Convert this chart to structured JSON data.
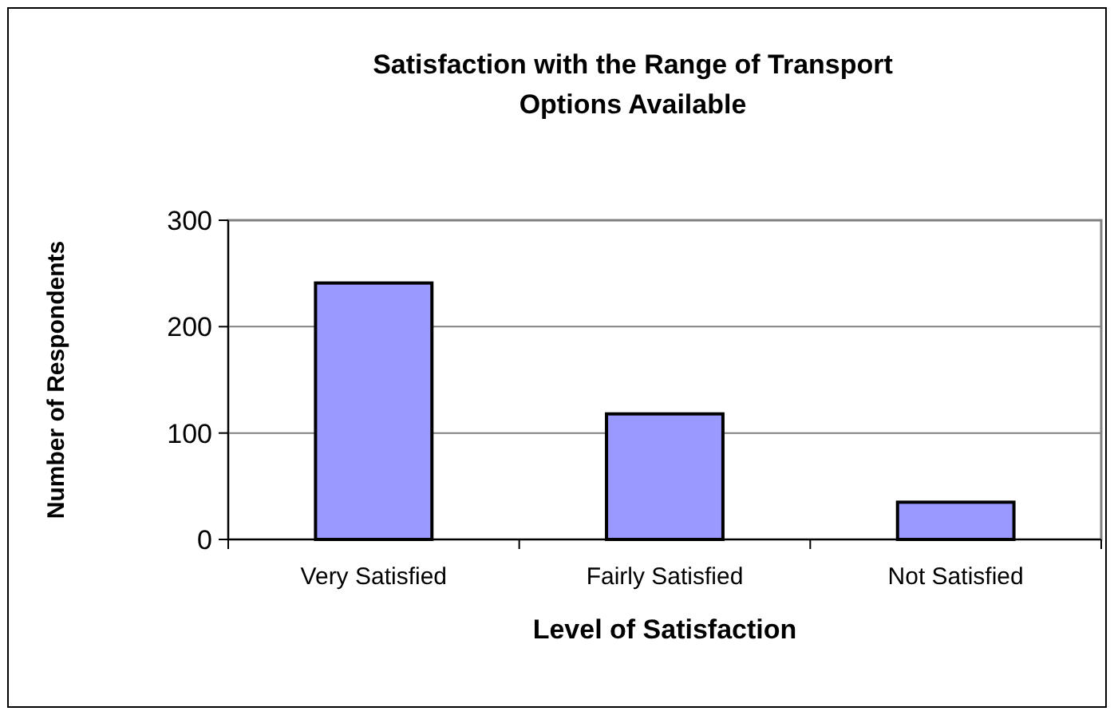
{
  "chart_data": {
    "type": "bar",
    "title": "Satisfaction with the Range of Transport Options Available",
    "xlabel": "Level of Satisfaction",
    "ylabel": "Number of Respondents",
    "categories": [
      "Very Satisfied",
      "Fairly Satisfied",
      "Not Satisfied"
    ],
    "values": [
      241,
      118,
      35
    ],
    "color": "#9999ff",
    "ylim": [
      0,
      300
    ],
    "yticks": [
      0,
      100,
      200,
      300
    ],
    "grid": "y"
  }
}
